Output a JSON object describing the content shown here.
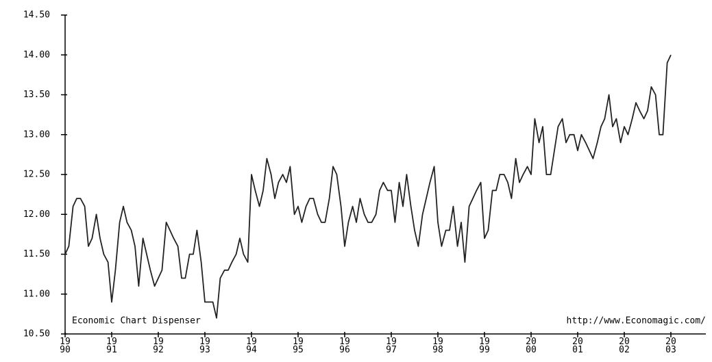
{
  "chart_data": {
    "type": "line",
    "color": "#222222",
    "annotations": [
      "Economic Chart Dispenser",
      "http://www.Economagic.com/"
    ],
    "xlim": [
      1990,
      2003.75
    ],
    "xticks": [
      1990,
      1991,
      1992,
      1993,
      1994,
      1995,
      1996,
      1997,
      1998,
      1999,
      2000,
      2001,
      2002,
      2003
    ],
    "ylim": [
      10.5,
      14.5
    ],
    "yticks": [
      {
        "value": 10.5,
        "label": "10.50"
      },
      {
        "value": 11,
        "label": "11.00"
      },
      {
        "value": 11.5,
        "label": "11.50"
      },
      {
        "value": 12,
        "label": "12.00"
      },
      {
        "value": 12.5,
        "label": "12.50"
      },
      {
        "value": 13,
        "label": "13.00"
      },
      {
        "value": 13.5,
        "label": "13.50"
      },
      {
        "value": 14,
        "label": "14.00"
      },
      {
        "value": 14.5,
        "label": "14.50"
      }
    ],
    "x": [
      1990,
      1990.08,
      1990.17,
      1990.25,
      1990.33,
      1990.42,
      1990.5,
      1990.58,
      1990.67,
      1990.75,
      1990.83,
      1990.92,
      1991,
      1991.08,
      1991.17,
      1991.25,
      1991.33,
      1991.42,
      1991.5,
      1991.58,
      1991.67,
      1991.75,
      1991.83,
      1991.92,
      1992,
      1992.08,
      1992.17,
      1992.25,
      1992.33,
      1992.42,
      1992.5,
      1992.58,
      1992.67,
      1992.75,
      1992.83,
      1992.92,
      1993,
      1993.08,
      1993.17,
      1993.25,
      1993.33,
      1993.42,
      1993.5,
      1993.58,
      1993.67,
      1993.75,
      1993.83,
      1993.92,
      1994,
      1994.08,
      1994.17,
      1994.25,
      1994.33,
      1994.42,
      1994.5,
      1994.58,
      1994.67,
      1994.75,
      1994.83,
      1994.92,
      1995,
      1995.08,
      1995.17,
      1995.25,
      1995.33,
      1995.42,
      1995.5,
      1995.58,
      1995.67,
      1995.75,
      1995.83,
      1995.92,
      1996,
      1996.08,
      1996.17,
      1996.25,
      1996.33,
      1996.42,
      1996.5,
      1996.58,
      1996.67,
      1996.75,
      1996.83,
      1996.92,
      1997,
      1997.08,
      1997.17,
      1997.25,
      1997.33,
      1997.42,
      1997.5,
      1997.58,
      1997.67,
      1997.75,
      1997.83,
      1997.92,
      1998,
      1998.08,
      1998.17,
      1998.25,
      1998.33,
      1998.42,
      1998.5,
      1998.58,
      1998.67,
      1998.75,
      1998.83,
      1998.92,
      1999,
      1999.08,
      1999.17,
      1999.25,
      1999.33,
      1999.42,
      1999.5,
      1999.58,
      1999.67,
      1999.75,
      1999.83,
      1999.92,
      2000,
      2000.08,
      2000.17,
      2000.25,
      2000.33,
      2000.42,
      2000.5,
      2000.58,
      2000.67,
      2000.75,
      2000.83,
      2000.92,
      2001,
      2001.08,
      2001.17,
      2001.25,
      2001.33,
      2001.42,
      2001.5,
      2001.58,
      2001.67,
      2001.75,
      2001.83,
      2001.92,
      2002,
      2002.08,
      2002.17,
      2002.25,
      2002.33,
      2002.42,
      2002.5,
      2002.58,
      2002.67,
      2002.75,
      2002.83,
      2002.92,
      2003
    ],
    "values": [
      11.5,
      11.6,
      12.1,
      12.2,
      12.2,
      12.1,
      11.6,
      11.7,
      12.0,
      11.7,
      11.5,
      11.4,
      10.9,
      11.3,
      11.9,
      12.1,
      11.9,
      11.8,
      11.6,
      11.1,
      11.7,
      11.5,
      11.3,
      11.1,
      11.2,
      11.3,
      11.9,
      11.8,
      11.7,
      11.6,
      11.2,
      11.2,
      11.5,
      11.5,
      11.8,
      11.4,
      10.9,
      10.9,
      10.9,
      10.7,
      11.2,
      11.3,
      11.3,
      11.4,
      11.5,
      11.7,
      11.5,
      11.4,
      12.5,
      12.3,
      12.1,
      12.3,
      12.7,
      12.5,
      12.2,
      12.4,
      12.5,
      12.4,
      12.6,
      12.0,
      12.1,
      11.9,
      12.1,
      12.2,
      12.2,
      12.0,
      11.9,
      11.9,
      12.2,
      12.6,
      12.5,
      12.1,
      11.6,
      11.9,
      12.1,
      11.9,
      12.2,
      12.0,
      11.9,
      11.9,
      12.0,
      12.3,
      12.4,
      12.3,
      12.3,
      11.9,
      12.4,
      12.1,
      12.5,
      12.1,
      11.8,
      11.6,
      12.0,
      12.2,
      12.4,
      12.6,
      11.9,
      11.6,
      11.8,
      11.8,
      12.1,
      11.6,
      11.9,
      11.4,
      12.1,
      12.2,
      12.3,
      12.4,
      11.7,
      11.8,
      12.3,
      12.3,
      12.5,
      12.5,
      12.4,
      12.2,
      12.7,
      12.4,
      12.5,
      12.6,
      12.5,
      13.2,
      12.9,
      13.1,
      12.5,
      12.5,
      12.8,
      13.1,
      13.2,
      12.9,
      13.0,
      13.0,
      12.8,
      13.0,
      12.9,
      12.8,
      12.7,
      12.9,
      13.1,
      13.2,
      13.5,
      13.1,
      13.2,
      12.9,
      13.1,
      13.0,
      13.2,
      13.4,
      13.3,
      13.2,
      13.3,
      13.6,
      13.5,
      13.0,
      13.0,
      13.9,
      14.0
    ]
  }
}
